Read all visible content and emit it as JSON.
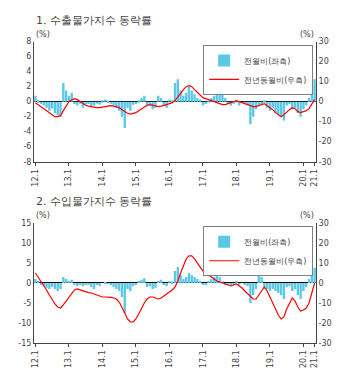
{
  "chart_data": [
    {
      "type": "bar",
      "title": "1. 수출물가지수 동락률",
      "ylabel": "(%)",
      "y2label": "(%)",
      "categories": [
        "12.1",
        null,
        null,
        null,
        null,
        null,
        null,
        null,
        null,
        null,
        null,
        null,
        "13.1",
        null,
        null,
        null,
        null,
        null,
        null,
        null,
        null,
        null,
        null,
        null,
        "14.1",
        null,
        null,
        null,
        null,
        null,
        null,
        null,
        null,
        null,
        null,
        null,
        "15.1",
        null,
        null,
        null,
        null,
        null,
        null,
        null,
        null,
        null,
        null,
        null,
        "16.1",
        null,
        null,
        null,
        null,
        null,
        null,
        null,
        null,
        null,
        null,
        null,
        "17.1",
        null,
        null,
        null,
        null,
        null,
        null,
        null,
        null,
        null,
        null,
        null,
        "18.1",
        null,
        null,
        null,
        null,
        null,
        null,
        null,
        null,
        null,
        null,
        null,
        "19.1",
        null,
        null,
        null,
        null,
        null,
        null,
        null,
        null,
        null,
        null,
        null,
        "20.1",
        null,
        null,
        null,
        "21.1"
      ],
      "series": [
        {
          "name": "전월비(좌측)",
          "type": "bar",
          "color": "#5BC8E8",
          "values": [
            0.8,
            0.2,
            -0.2,
            -0.5,
            -0.8,
            -1.2,
            -0.9,
            -1.5,
            -1.8,
            -2.0,
            2.5,
            1.5,
            0.8,
            1.2,
            -0.3,
            -0.5,
            -0.2,
            -0.8,
            -0.4,
            -0.3,
            -0.6,
            -0.5,
            -0.2,
            -0.4,
            0.2,
            0.3,
            0.1,
            -0.2,
            -0.5,
            -0.8,
            -1.2,
            -2.0,
            -3.5,
            -0.8,
            -1.2,
            -0.4,
            -0.3,
            0.2,
            0.5,
            0.8,
            -0.6,
            -0.5,
            -1.0,
            -0.8,
            0.8,
            0.5,
            -0.5,
            -0.8,
            0.3,
            0.2,
            2.5,
            3.0,
            1.5,
            0.8,
            1.2,
            2.0,
            1.5,
            1.0,
            0.5,
            0.3,
            -0.5,
            -0.3,
            0.2,
            0.5,
            0.8,
            1.2,
            1.5,
            1.0,
            0.5,
            -0.3,
            -0.5,
            -0.3,
            0.2,
            -0.5,
            0.0,
            -0.2,
            -0.5,
            -3.0,
            -2.0,
            -1.0,
            -0.5,
            -0.3,
            0.2,
            -0.8,
            -1.2,
            -0.8,
            -1.5,
            -1.8,
            -2.0,
            -2.5,
            -0.5,
            -0.3,
            -1.0,
            -0.8,
            -1.5,
            -2.0,
            -1.0,
            -0.5,
            0.5,
            2.0,
            3.0
          ]
        },
        {
          "name": "전년동월비(우측)",
          "type": "line",
          "color": "#FF0000",
          "axis": "y2",
          "values": [
            -0.5,
            -1.5,
            -2.5,
            -3.5,
            -4.5,
            -5.5,
            -6.5,
            -7.5,
            -7.5,
            -7.0,
            -4.5,
            -2.0,
            0.0,
            1.0,
            1.5,
            1.0,
            0.0,
            -1.0,
            -1.8,
            -2.2,
            -2.5,
            -2.8,
            -3.0,
            -3.0,
            -2.8,
            -2.5,
            -2.2,
            -2.0,
            -2.2,
            -2.5,
            -3.0,
            -4.0,
            -5.0,
            -5.8,
            -6.2,
            -6.0,
            -5.5,
            -4.5,
            -3.5,
            -2.5,
            -1.8,
            -1.5,
            -1.8,
            -2.2,
            -2.5,
            -2.2,
            -2.0,
            -1.5,
            -1.0,
            -0.5,
            0.5,
            2.0,
            4.0,
            6.0,
            7.5,
            8.0,
            7.5,
            6.0,
            4.5,
            3.0,
            2.0,
            1.5,
            1.0,
            0.5,
            0.0,
            -0.5,
            -1.0,
            -1.5,
            -1.5,
            -1.0,
            -0.5,
            0.0,
            0.5,
            0.0,
            -0.5,
            -1.0,
            -1.5,
            -2.0,
            -2.5,
            -2.5,
            -2.0,
            -1.5,
            -1.0,
            -2.0,
            -3.0,
            -4.0,
            -5.5,
            -6.5,
            -7.5,
            -6.5,
            -5.0,
            -4.0,
            -3.0,
            -3.5,
            -5.0,
            -5.5,
            -5.0,
            -4.5,
            -3.5,
            -1.5,
            1.0
          ]
        }
      ],
      "ylim": [
        -8,
        8
      ],
      "yticks": [
        -8,
        -6,
        -4,
        -2,
        0,
        2,
        4,
        6,
        8
      ],
      "y2lim": [
        -30,
        30
      ],
      "y2ticks": [
        -30,
        -20,
        -10,
        0,
        10,
        20,
        30
      ],
      "grid": false,
      "legend": "upper right"
    },
    {
      "type": "bar",
      "title": "2. 수입물가지수 동락률",
      "ylabel": "(%)",
      "y2label": "(%)",
      "categories": [
        "12.1",
        null,
        null,
        null,
        null,
        null,
        null,
        null,
        null,
        null,
        null,
        null,
        "13.1",
        null,
        null,
        null,
        null,
        null,
        null,
        null,
        null,
        null,
        null,
        null,
        "14.1",
        null,
        null,
        null,
        null,
        null,
        null,
        null,
        null,
        null,
        null,
        null,
        "15.1",
        null,
        null,
        null,
        null,
        null,
        null,
        null,
        null,
        null,
        null,
        null,
        "16.1",
        null,
        null,
        null,
        null,
        null,
        null,
        null,
        null,
        null,
        null,
        null,
        "17.1",
        null,
        null,
        null,
        null,
        null,
        null,
        null,
        null,
        null,
        null,
        null,
        "18.1",
        null,
        null,
        null,
        null,
        null,
        null,
        null,
        null,
        null,
        null,
        null,
        "19.1",
        null,
        null,
        null,
        null,
        null,
        null,
        null,
        null,
        null,
        null,
        null,
        "20.1",
        null,
        null,
        null,
        "21.1"
      ],
      "series": [
        {
          "name": "전월비(좌측)",
          "type": "bar",
          "color": "#5BC8E8",
          "values": [
            1.0,
            0.5,
            -0.3,
            -0.8,
            -1.2,
            -1.5,
            -1.0,
            -1.5,
            -2.0,
            -1.5,
            1.5,
            1.0,
            0.5,
            0.8,
            -0.5,
            -0.8,
            -0.3,
            -0.8,
            -0.5,
            -0.3,
            -1.0,
            -1.5,
            -0.5,
            -0.8,
            0.0,
            0.2,
            -0.2,
            -0.5,
            -1.0,
            -1.5,
            -2.0,
            -3.5,
            -7.5,
            -1.5,
            -2.0,
            -0.8,
            -0.5,
            0.5,
            0.8,
            1.2,
            -1.0,
            -0.8,
            -1.5,
            -1.2,
            0.5,
            0.8,
            -0.5,
            -0.8,
            0.5,
            0.3,
            3.0,
            4.0,
            2.0,
            1.0,
            1.5,
            2.5,
            2.0,
            1.5,
            1.0,
            0.5,
            -0.5,
            -0.5,
            0.5,
            1.0,
            1.5,
            2.0,
            1.5,
            0.5,
            -0.5,
            -0.5,
            -0.8,
            -0.5,
            0.5,
            -0.5,
            0.0,
            -0.5,
            -0.8,
            -5.0,
            -3.0,
            -1.5,
            2.0,
            1.5,
            -1.5,
            -1.5,
            -2.0,
            -1.5,
            -2.0,
            -2.5,
            -3.0,
            -4.0,
            -1.0,
            -0.8,
            -2.0,
            -1.5,
            -3.0,
            -4.0,
            -2.0,
            -1.0,
            1.0,
            3.5,
            3.8
          ]
        },
        {
          "name": "전년동월비(우측)",
          "type": "line",
          "color": "#FF0000",
          "axis": "y2",
          "values": [
            5.0,
            3.0,
            1.0,
            -1.0,
            -3.5,
            -6.0,
            -8.5,
            -10.5,
            -12.0,
            -12.5,
            -11.0,
            -9.0,
            -7.0,
            -5.0,
            -3.5,
            -3.0,
            -3.5,
            -4.0,
            -4.5,
            -4.8,
            -5.0,
            -5.5,
            -6.0,
            -6.5,
            -7.0,
            -7.0,
            -7.0,
            -7.2,
            -7.5,
            -8.0,
            -9.5,
            -12.0,
            -15.0,
            -18.0,
            -19.5,
            -19.5,
            -18.0,
            -15.5,
            -12.5,
            -10.0,
            -8.0,
            -7.0,
            -7.0,
            -7.5,
            -8.0,
            -7.5,
            -6.5,
            -5.5,
            -4.5,
            -3.5,
            -2.0,
            1.0,
            5.0,
            9.0,
            12.0,
            13.5,
            13.5,
            12.0,
            10.0,
            8.0,
            6.0,
            5.0,
            4.0,
            3.0,
            2.0,
            1.0,
            0.5,
            0.0,
            -0.5,
            -1.0,
            -1.5,
            -1.0,
            -0.5,
            -1.5,
            -2.5,
            -4.0,
            -5.5,
            -7.0,
            -8.0,
            -8.0,
            -6.0,
            -4.0,
            -2.0,
            -4.0,
            -7.0,
            -10.0,
            -13.0,
            -16.0,
            -18.0,
            -17.0,
            -13.0,
            -10.0,
            -7.5,
            -9.0,
            -12.0,
            -14.0,
            -13.5,
            -12.5,
            -10.0,
            -5.0,
            0.0
          ]
        }
      ],
      "ylim": [
        -15,
        15
      ],
      "yticks": [
        -15,
        -10,
        -5,
        0,
        5,
        10,
        15
      ],
      "y2lim": [
        -30,
        30
      ],
      "y2ticks": [
        -30,
        -20,
        -10,
        0,
        10,
        20,
        30
      ],
      "grid": false,
      "legend": "upper right"
    }
  ]
}
